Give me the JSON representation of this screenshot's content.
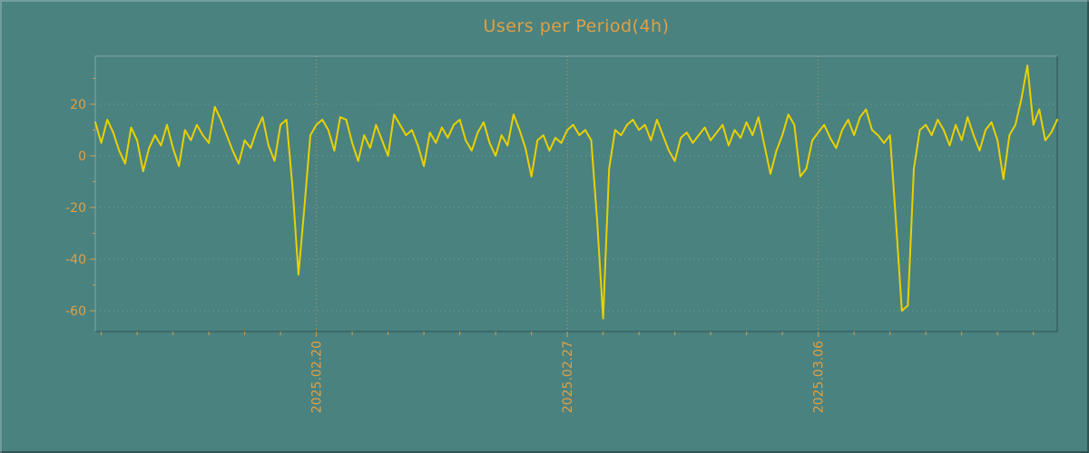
{
  "title": "Users per Period(4h)",
  "colors": {
    "background": "#4a8280",
    "accent": "#dfa045",
    "line": "#e9d100",
    "grid_major": "#cf9443",
    "grid_minor": "rgba(255,255,255,0.22)"
  },
  "chart_data": {
    "type": "line",
    "title": "Users per Period(4h)",
    "xlabel": "",
    "ylabel": "",
    "ylim": [
      -68,
      38
    ],
    "grid": "dotted",
    "legend": "none",
    "y_ticks": [
      20,
      0,
      -20,
      -40,
      -60
    ],
    "x_ticks": [
      {
        "label": "2025.02.20",
        "index": 37
      },
      {
        "label": "2025.02.27",
        "index": 79
      },
      {
        "label": "2025.03.06",
        "index": 121
      }
    ],
    "period_hours": 4,
    "values": [
      13,
      5,
      14,
      9,
      2,
      -3,
      11,
      6,
      -6,
      3,
      8,
      4,
      12,
      3,
      -4,
      10,
      6,
      12,
      8,
      5,
      19,
      14,
      8,
      2,
      -3,
      6,
      3,
      10,
      15,
      4,
      -2,
      12,
      14,
      -12,
      -46,
      -20,
      8,
      12,
      14,
      10,
      2,
      15,
      14,
      5,
      -2,
      8,
      3,
      12,
      6,
      0,
      16,
      12,
      8,
      10,
      4,
      -4,
      9,
      5,
      11,
      7,
      12,
      14,
      6,
      2,
      9,
      13,
      5,
      0,
      8,
      4,
      16,
      10,
      3,
      -8,
      6,
      8,
      2,
      7,
      5,
      10,
      12,
      8,
      10,
      6,
      -25,
      -63,
      -5,
      10,
      8,
      12,
      14,
      10,
      12,
      6,
      14,
      8,
      2,
      -2,
      7,
      9,
      5,
      8,
      11,
      6,
      9,
      12,
      4,
      10,
      7,
      13,
      8,
      15,
      4,
      -7,
      2,
      8,
      16,
      12,
      -8,
      -5,
      6,
      9,
      12,
      7,
      3,
      10,
      14,
      8,
      15,
      18,
      10,
      8,
      5,
      8,
      -25,
      -60,
      -58,
      -5,
      10,
      12,
      8,
      14,
      10,
      4,
      12,
      6,
      15,
      8,
      2,
      10,
      13,
      6,
      -9,
      8,
      12,
      22,
      35,
      12,
      18,
      6,
      9,
      14
    ]
  }
}
